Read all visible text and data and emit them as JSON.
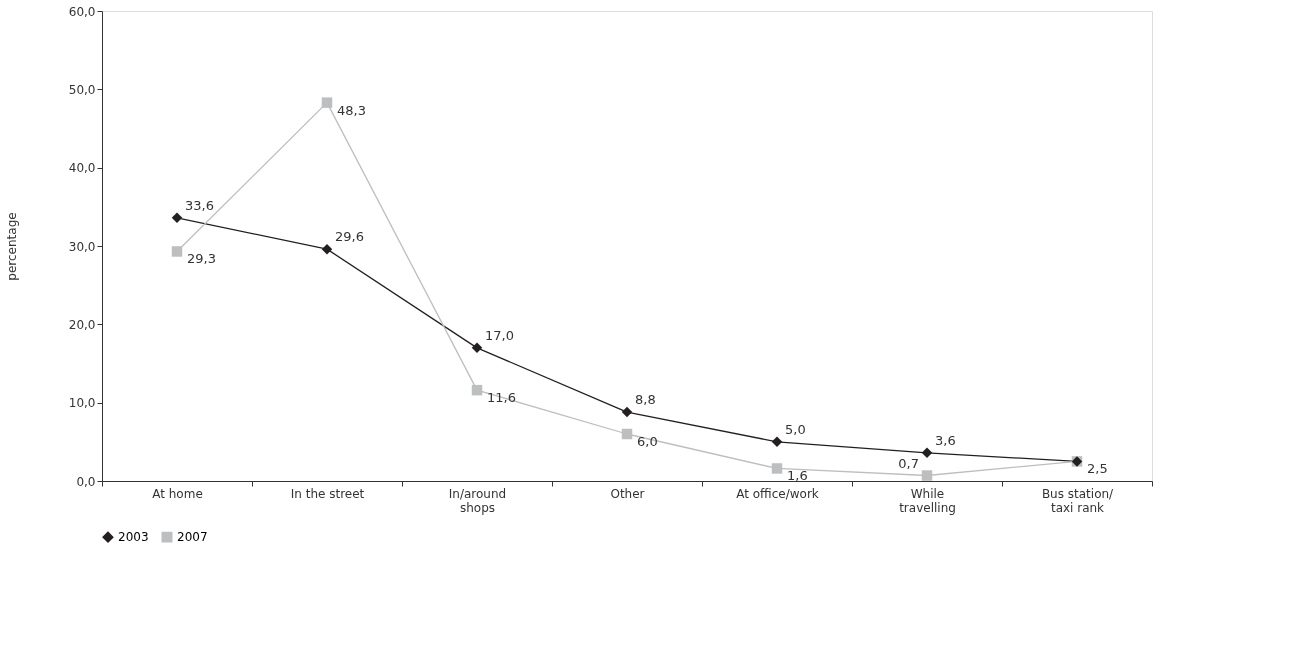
{
  "chart_data": {
    "type": "line",
    "ylabel": "percentage",
    "categories": [
      "At home",
      "In the street",
      "In/around\nshops",
      "Other",
      "At office/work",
      "While\ntravelling",
      "Bus station/\ntaxi rank"
    ],
    "series": [
      {
        "name": "2003",
        "color": "#231f20",
        "marker": "diamond",
        "values": [
          33.6,
          29.6,
          17.0,
          8.8,
          5.0,
          3.6,
          2.5
        ],
        "value_labels": [
          "33,6",
          "29,6",
          "17,0",
          "8,8",
          "5,0",
          "3,6",
          null
        ]
      },
      {
        "name": "2007",
        "color": "#bcbec0",
        "marker": "square",
        "values": [
          29.3,
          48.3,
          11.6,
          6.0,
          1.6,
          0.7,
          2.5
        ],
        "value_labels": [
          "29,3",
          "48,3",
          "11,6",
          "6,0",
          "1,6",
          "0,7",
          "2,5"
        ]
      }
    ],
    "ylim": [
      0,
      60
    ],
    "yticks": [
      {
        "value": 0,
        "label": "0,0"
      },
      {
        "value": 10,
        "label": "10,0"
      },
      {
        "value": 20,
        "label": "20,0"
      },
      {
        "value": 30,
        "label": "30,0"
      },
      {
        "value": 40,
        "label": "40,0"
      },
      {
        "value": 50,
        "label": "50,0"
      },
      {
        "value": 60,
        "label": "60,0"
      }
    ],
    "grid": false,
    "legend": "bottom",
    "line_style": "solid"
  }
}
